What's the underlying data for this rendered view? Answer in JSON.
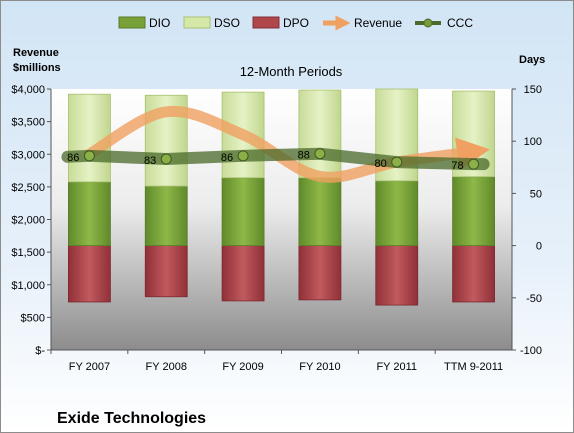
{
  "chart_data": {
    "type": "bar",
    "title": "12-Month Periods",
    "footer": "Exide Technologies",
    "left_axis_title": [
      "Revenue",
      "$millions"
    ],
    "right_axis_title": "Days",
    "left_axis": {
      "range": [
        0,
        4000
      ],
      "ticks": [
        "$-",
        "$500",
        "$1,000",
        "$1,500",
        "$2,000",
        "$2,500",
        "$3,000",
        "$3,500",
        "$4,000"
      ]
    },
    "right_axis": {
      "range": [
        -100,
        150
      ],
      "ticks": [
        "-100",
        "-50",
        "0",
        "50",
        "100",
        "150"
      ]
    },
    "categories": [
      "FY 2007",
      "FY 2008",
      "FY 2009",
      "FY 2010",
      "FY 2011",
      "TTM 9-2011"
    ],
    "series": [
      {
        "name": "DIO",
        "axis": "days",
        "stacked": true,
        "values": [
          61,
          57,
          65,
          65,
          62,
          66
        ]
      },
      {
        "name": "DSO",
        "axis": "days",
        "stacked": true,
        "values": [
          84,
          87,
          82,
          84,
          88,
          82
        ]
      },
      {
        "name": "DPO",
        "axis": "days",
        "stacked": true,
        "values": [
          -54,
          -49,
          -53,
          -52,
          -57,
          -54
        ]
      },
      {
        "name": "Revenue",
        "axis": "revenue",
        "type": "line",
        "values": [
          3000,
          3650,
          3300,
          2660,
          2880,
          3040
        ]
      },
      {
        "name": "CCC",
        "axis": "days",
        "type": "line",
        "values": [
          86,
          83,
          86,
          88,
          80,
          78
        ],
        "labels": [
          "86",
          "83",
          "86",
          "88",
          "80",
          "78"
        ]
      }
    ],
    "legend": {
      "placement": "top",
      "items": [
        "DIO",
        "DSO",
        "DPO",
        "Revenue",
        "CCC"
      ]
    },
    "colors": {
      "DIO": "#78a038",
      "DSO": "#d6e8a8",
      "DPO": "#b0454a",
      "Revenue": "#f0a060",
      "CCC": "#4a6a2a",
      "plot_top": "#ffffff",
      "plot_bottom": "#8a8a8a"
    }
  }
}
